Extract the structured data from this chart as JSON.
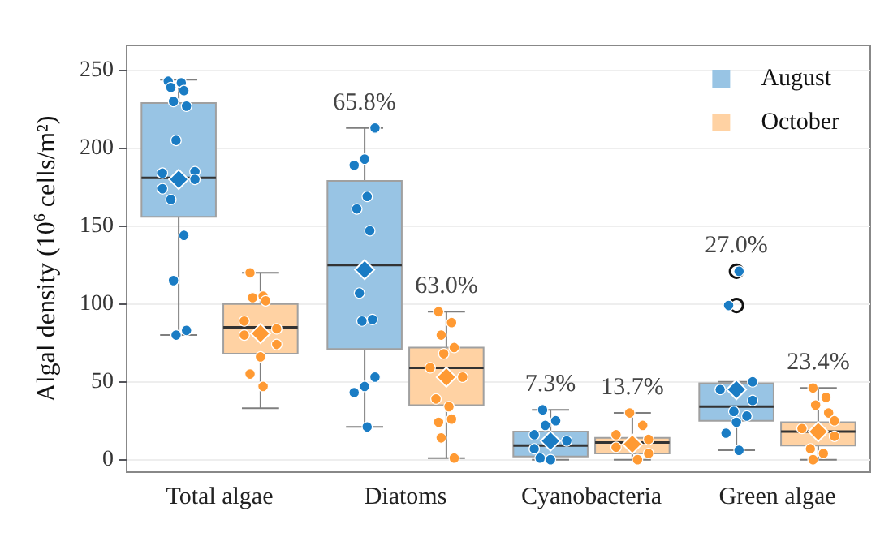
{
  "chart_data": {
    "type": "box",
    "ylabel": "Algal density (10$^{6}$ cells/m²)",
    "categories": [
      "Total algae",
      "Diatoms",
      "Cyanobacteria",
      "Green algae"
    ],
    "ylim": [
      -8,
      266
    ],
    "yticks": [
      0,
      50,
      100,
      150,
      200,
      250
    ],
    "grid": "y",
    "legend": "top right",
    "series": [
      {
        "name": "August",
        "color": "#98c4e4",
        "value_labels": [
          null,
          "65.8%",
          "7.3%",
          "27.0%"
        ],
        "boxes": [
          {
            "low": 80,
            "q1": 156,
            "median": 181,
            "q3": 229,
            "high": 244,
            "mean": 180
          },
          {
            "low": 21,
            "q1": 71,
            "median": 125,
            "q3": 179,
            "high": 213,
            "mean": 122
          },
          {
            "low": 0,
            "q1": 2,
            "median": 9,
            "q3": 18,
            "high": 32,
            "mean": 12
          },
          {
            "low": 6,
            "q1": 25,
            "median": 34,
            "q3": 49,
            "high": 50,
            "mean": 45,
            "outliers": [
              121,
              99
            ]
          }
        ]
      },
      {
        "name": "October",
        "color": "#ffd2a3",
        "value_labels": [
          null,
          "63.0%",
          "13.7%",
          "23.4%"
        ],
        "boxes": [
          {
            "low": 33,
            "q1": 68,
            "median": 85,
            "q3": 100,
            "high": 120,
            "mean": 81
          },
          {
            "low": 1,
            "q1": 35,
            "median": 59,
            "q3": 72,
            "high": 95,
            "mean": 53
          },
          {
            "low": 0,
            "q1": 4,
            "median": 11,
            "q3": 14,
            "high": 30,
            "mean": 10
          },
          {
            "low": 0,
            "q1": 9,
            "median": 18,
            "q3": 24,
            "high": 46,
            "mean": 18
          }
        ]
      },
      {
        "type": "scatter",
        "color": "#1a7cc4",
        "x": [
          "Total algae",
          "Total algae",
          "Total algae",
          "Total algae",
          "Total algae",
          "Total algae",
          "Total algae",
          "Total algae",
          "Total algae",
          "Total algae",
          "Total algae",
          "Total algae",
          "Total algae",
          "Total algae",
          "Total algae",
          "Total algae",
          "Diatoms",
          "Diatoms",
          "Diatoms",
          "Diatoms",
          "Diatoms",
          "Diatoms",
          "Diatoms",
          "Diatoms",
          "Diatoms",
          "Diatoms",
          "Diatoms",
          "Diatoms",
          "Diatoms",
          "Cyanobacteria",
          "Cyanobacteria",
          "Cyanobacteria",
          "Cyanobacteria",
          "Cyanobacteria",
          "Cyanobacteria",
          "Cyanobacteria",
          "Cyanobacteria",
          "Green algae",
          "Green algae",
          "Green algae",
          "Green algae",
          "Green algae",
          "Green algae",
          "Green algae",
          "Green algae",
          "Green algae",
          "Green algae"
        ],
        "values": [
          243,
          242,
          239,
          237,
          230,
          227,
          205,
          185,
          184,
          180,
          174,
          167,
          144,
          115,
          83,
          80,
          213,
          193,
          189,
          169,
          161,
          147,
          107,
          90,
          89,
          53,
          47,
          43,
          21,
          32,
          25,
          22,
          16,
          12,
          7,
          0,
          1,
          121,
          99,
          50,
          45,
          38,
          31,
          28,
          24,
          17,
          6
        ]
      },
      {
        "type": "scatter",
        "color": "#ff9a33",
        "x": [
          "Total algae",
          "Total algae",
          "Total algae",
          "Total algae",
          "Total algae",
          "Total algae",
          "Total algae",
          "Total algae",
          "Total algae",
          "Total algae",
          "Total algae",
          "Diatoms",
          "Diatoms",
          "Diatoms",
          "Diatoms",
          "Diatoms",
          "Diatoms",
          "Diatoms",
          "Diatoms",
          "Diatoms",
          "Diatoms",
          "Diatoms",
          "Diatoms",
          "Diatoms",
          "Cyanobacteria",
          "Cyanobacteria",
          "Cyanobacteria",
          "Cyanobacteria",
          "Cyanobacteria",
          "Cyanobacteria",
          "Cyanobacteria",
          "Green algae",
          "Green algae",
          "Green algae",
          "Green algae",
          "Green algae",
          "Green algae",
          "Green algae",
          "Green algae",
          "Green algae",
          "Green algae"
        ],
        "values": [
          120,
          105,
          104,
          102,
          89,
          84,
          80,
          74,
          66,
          55,
          47,
          95,
          88,
          80,
          72,
          68,
          59,
          53,
          39,
          34,
          24,
          26,
          14,
          1,
          30,
          22,
          16,
          13,
          8,
          4,
          0,
          46,
          40,
          35,
          30,
          25,
          20,
          15,
          7,
          4,
          0
        ]
      }
    ]
  }
}
